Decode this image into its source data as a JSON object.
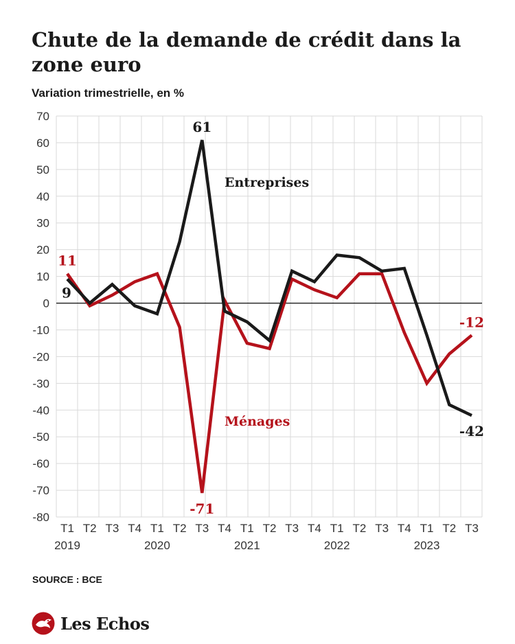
{
  "header": {
    "title": "Chute de la demande de crédit dans la zone euro",
    "subtitle": "Variation trimestrielle, en %"
  },
  "footer": {
    "source": "SOURCE : BCE",
    "brand": "Les Echos"
  },
  "colors": {
    "entreprises": "#1a1a1a",
    "menages": "#b5121b",
    "grid": "#d9d9d9",
    "text": "#1a1a1a"
  },
  "chart_data": {
    "type": "line",
    "x": [
      "T1",
      "T2",
      "T3",
      "T4",
      "T1",
      "T2",
      "T3",
      "T4",
      "T1",
      "T2",
      "T3",
      "T4",
      "T1",
      "T2",
      "T3",
      "T4",
      "T1",
      "T2",
      "T3"
    ],
    "years": [
      {
        "label": "2019",
        "at_index": 0
      },
      {
        "label": "2020",
        "at_index": 4
      },
      {
        "label": "2021",
        "at_index": 8
      },
      {
        "label": "2022",
        "at_index": 12
      },
      {
        "label": "2023",
        "at_index": 16
      }
    ],
    "ylim": [
      -80,
      70
    ],
    "yticks": [
      70,
      60,
      50,
      40,
      30,
      20,
      10,
      0,
      -10,
      -20,
      -30,
      -40,
      -50,
      -60,
      -70,
      -80
    ],
    "grid": true,
    "series": [
      {
        "name": "Entreprises",
        "color": "#1a1a1a",
        "values": [
          9,
          0,
          7,
          -1,
          -4,
          23,
          61,
          -3,
          -7,
          -14,
          12,
          8,
          18,
          17,
          12,
          13,
          -12,
          -38,
          -42
        ]
      },
      {
        "name": "Ménages",
        "color": "#b5121b",
        "values": [
          11,
          -1,
          3,
          8,
          11,
          -9,
          -71,
          1,
          -15,
          -17,
          9,
          5,
          2,
          11,
          11,
          -11,
          -30,
          -19,
          -12
        ]
      }
    ],
    "annotations": [
      {
        "text": "11",
        "series": 1,
        "index": 0,
        "pos": "above"
      },
      {
        "text": "9",
        "series": 0,
        "index": 0,
        "pos": "below-left"
      },
      {
        "text": "61",
        "series": 0,
        "index": 6,
        "pos": "above"
      },
      {
        "text": "-71",
        "series": 1,
        "index": 6,
        "pos": "below"
      },
      {
        "text": "-12",
        "series": 1,
        "index": 18,
        "pos": "above"
      },
      {
        "text": "-42",
        "series": 0,
        "index": 18,
        "pos": "below"
      }
    ]
  }
}
